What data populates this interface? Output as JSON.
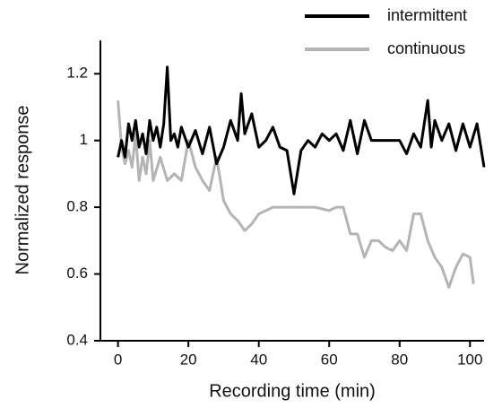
{
  "chart_data": {
    "type": "line",
    "xlabel": "Recording time (min)",
    "ylabel": "Normalized response",
    "xlim": [
      -5,
      104
    ],
    "ylim": [
      0.4,
      1.3
    ],
    "xticks": [
      0,
      20,
      40,
      60,
      80,
      100
    ],
    "yticks": [
      0.4,
      0.6,
      0.8,
      1,
      1.2
    ],
    "legend": "top-right",
    "series": [
      {
        "name": "intermittent",
        "color": "#000000",
        "x": [
          0,
          1,
          2,
          3,
          4,
          5,
          6,
          7,
          8,
          9,
          10,
          11,
          12,
          13,
          14,
          15,
          16,
          17,
          18,
          20,
          22,
          24,
          26,
          28,
          30,
          32,
          34,
          35,
          36,
          38,
          40,
          42,
          44,
          46,
          48,
          50,
          52,
          54,
          56,
          58,
          60,
          62,
          64,
          66,
          68,
          70,
          72,
          74,
          76,
          78,
          80,
          82,
          84,
          86,
          88,
          89,
          90,
          92,
          94,
          96,
          98,
          100,
          102,
          104
        ],
        "values": [
          0.95,
          1.0,
          0.95,
          1.05,
          1.0,
          1.06,
          0.98,
          1.02,
          0.96,
          1.06,
          1.0,
          1.04,
          0.98,
          1.05,
          1.22,
          1.0,
          1.02,
          0.98,
          1.04,
          0.98,
          1.03,
          0.96,
          1.04,
          0.93,
          0.98,
          1.06,
          1.0,
          1.14,
          1.02,
          1.08,
          0.98,
          1.0,
          1.04,
          0.98,
          0.97,
          0.84,
          0.97,
          1.0,
          0.98,
          1.02,
          1.0,
          1.02,
          0.97,
          1.06,
          0.96,
          1.06,
          1.0,
          1.0,
          1.0,
          1.0,
          1.0,
          0.96,
          1.02,
          0.98,
          1.12,
          0.98,
          1.06,
          1.0,
          1.05,
          0.97,
          1.05,
          0.98,
          1.05,
          0.92
        ]
      },
      {
        "name": "continuous",
        "color": "#b4b4b4",
        "x": [
          0,
          1,
          2,
          3,
          4,
          5,
          6,
          7,
          8,
          9,
          10,
          12,
          14,
          16,
          18,
          20,
          22,
          24,
          26,
          28,
          30,
          32,
          34,
          36,
          38,
          40,
          44,
          48,
          52,
          56,
          60,
          62,
          64,
          66,
          68,
          70,
          72,
          74,
          76,
          78,
          80,
          82,
          84,
          86,
          88,
          90,
          92,
          94,
          96,
          98,
          100,
          101
        ],
        "values": [
          1.12,
          0.98,
          0.93,
          0.97,
          0.92,
          1.02,
          0.88,
          0.95,
          0.9,
          1.0,
          0.88,
          0.95,
          0.88,
          0.9,
          0.88,
          1.0,
          0.92,
          0.88,
          0.85,
          0.95,
          0.82,
          0.78,
          0.76,
          0.73,
          0.75,
          0.78,
          0.8,
          0.8,
          0.8,
          0.8,
          0.79,
          0.8,
          0.8,
          0.72,
          0.72,
          0.65,
          0.7,
          0.7,
          0.68,
          0.67,
          0.7,
          0.67,
          0.78,
          0.78,
          0.7,
          0.65,
          0.62,
          0.56,
          0.62,
          0.66,
          0.65,
          0.57
        ]
      }
    ]
  }
}
